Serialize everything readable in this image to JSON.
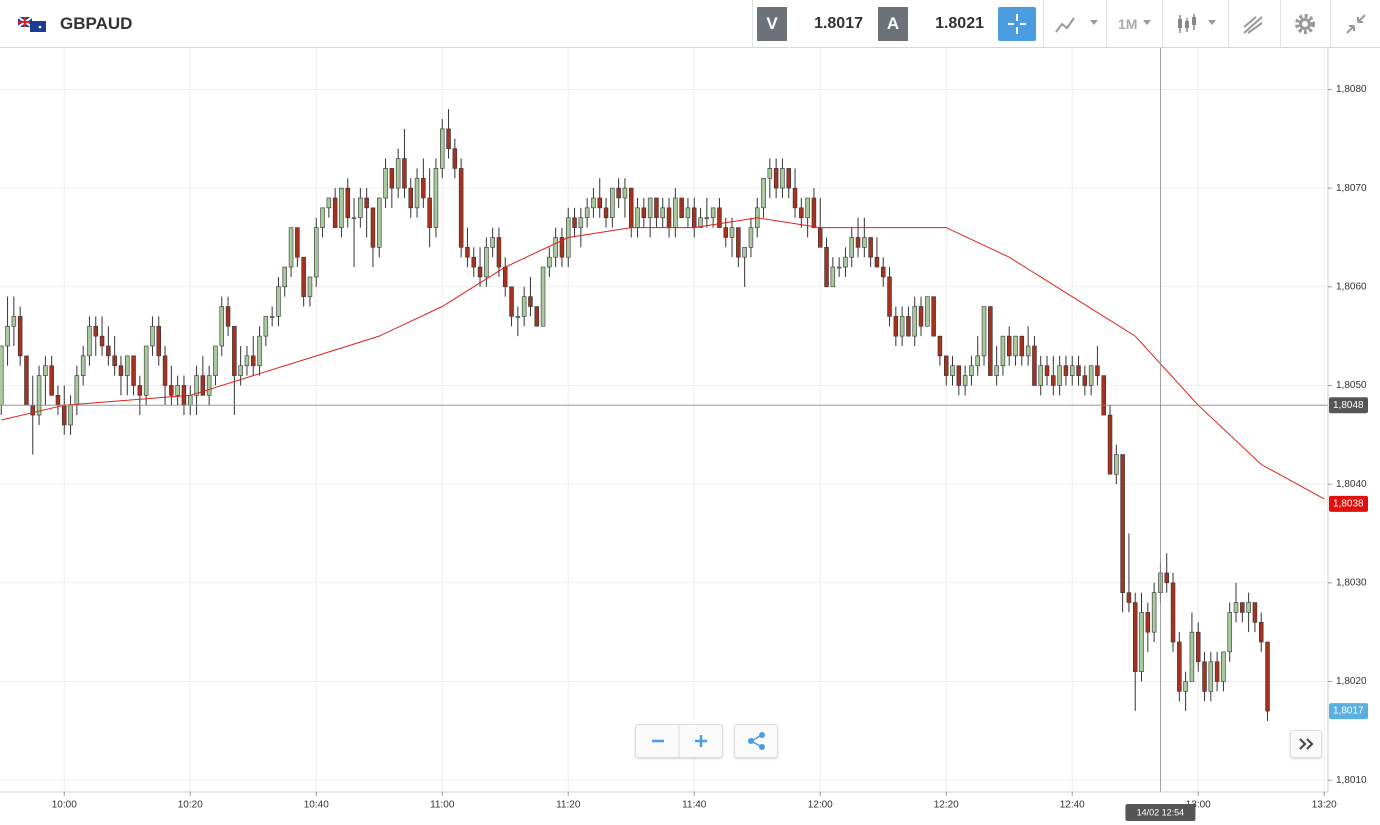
{
  "toolbar": {
    "symbol": "GBPAUD",
    "sell_label": "V",
    "sell_price": "1.8017",
    "buy_label": "A",
    "buy_price": "1.8021",
    "timeframe": "1M"
  },
  "chart_data": {
    "type": "candlestick",
    "up_color": "#a9c99e",
    "down_color": "#a5321f",
    "ma_color": "#e0201b",
    "ylim": [
      1.80088,
      1.80842
    ],
    "yticks": [
      {
        "value": 1.801,
        "label": "1,8010"
      },
      {
        "value": 1.802,
        "label": "1,8020"
      },
      {
        "value": 1.803,
        "label": "1,8030"
      },
      {
        "value": 1.804,
        "label": "1,8040"
      },
      {
        "value": 1.805,
        "label": "1,8050"
      },
      {
        "value": 1.806,
        "label": "1,8060"
      },
      {
        "value": 1.807,
        "label": "1,8070"
      },
      {
        "value": 1.808,
        "label": "1,8080"
      }
    ],
    "xlim": [
      -0.2,
      210.6
    ],
    "xticks": [
      {
        "value": 10,
        "label": "10:00"
      },
      {
        "value": 30,
        "label": "10:20"
      },
      {
        "value": 50,
        "label": "10:40"
      },
      {
        "value": 70,
        "label": "11:00"
      },
      {
        "value": 90,
        "label": "11:20"
      },
      {
        "value": 110,
        "label": "11:40"
      },
      {
        "value": 130,
        "label": "12:00"
      },
      {
        "value": 150,
        "label": "12:20"
      },
      {
        "value": 170,
        "label": "12:40"
      },
      {
        "value": 190,
        "label": "13:00"
      },
      {
        "value": 210,
        "label": "13:20"
      }
    ],
    "grid": true,
    "ohlc": [
      [
        1.8048,
        1.8054,
        1.8047,
        1.8054
      ],
      [
        1.8054,
        1.8059,
        1.8052,
        1.8056
      ],
      [
        1.8056,
        1.8059,
        1.8054,
        1.8057
      ],
      [
        1.8057,
        1.8058,
        1.8052,
        1.8053
      ],
      [
        1.8053,
        1.8053,
        1.8048,
        1.8048
      ],
      [
        1.8048,
        1.8051,
        1.8043,
        1.8047
      ],
      [
        1.8047,
        1.8052,
        1.8046,
        1.8051
      ],
      [
        1.8051,
        1.8053,
        1.8048,
        1.8052
      ],
      [
        1.8052,
        1.8053,
        1.8049,
        1.8049
      ],
      [
        1.8049,
        1.805,
        1.8047,
        1.8048
      ],
      [
        1.8048,
        1.805,
        1.8045,
        1.8046
      ],
      [
        1.8046,
        1.8049,
        1.8045,
        1.8048
      ],
      [
        1.8048,
        1.8052,
        1.8047,
        1.8051
      ],
      [
        1.8051,
        1.8054,
        1.805,
        1.8053
      ],
      [
        1.8053,
        1.8057,
        1.8052,
        1.8056
      ],
      [
        1.8056,
        1.8057,
        1.8053,
        1.8055
      ],
      [
        1.8055,
        1.8057,
        1.8053,
        1.8054
      ],
      [
        1.8054,
        1.8056,
        1.8052,
        1.8053
      ],
      [
        1.8053,
        1.8055,
        1.8051,
        1.8052
      ],
      [
        1.8052,
        1.8053,
        1.8049,
        1.8051
      ],
      [
        1.8051,
        1.8053,
        1.8049,
        1.8053
      ],
      [
        1.8053,
        1.8053,
        1.8049,
        1.805
      ],
      [
        1.805,
        1.8051,
        1.8047,
        1.8049
      ],
      [
        1.8049,
        1.8054,
        1.8048,
        1.8054
      ],
      [
        1.8054,
        1.8057,
        1.8053,
        1.8056
      ],
      [
        1.8056,
        1.8057,
        1.8052,
        1.8053
      ],
      [
        1.8053,
        1.8054,
        1.8048,
        1.805
      ],
      [
        1.805,
        1.8052,
        1.8048,
        1.8049
      ],
      [
        1.8049,
        1.8051,
        1.8048,
        1.805
      ],
      [
        1.805,
        1.8051,
        1.8047,
        1.8048
      ],
      [
        1.8048,
        1.805,
        1.8047,
        1.8049
      ],
      [
        1.8049,
        1.8052,
        1.8047,
        1.8051
      ],
      [
        1.8051,
        1.8053,
        1.8049,
        1.8049
      ],
      [
        1.8049,
        1.8052,
        1.8048,
        1.8051
      ],
      [
        1.8051,
        1.8054,
        1.805,
        1.8054
      ],
      [
        1.8054,
        1.8059,
        1.8053,
        1.8058
      ],
      [
        1.8058,
        1.8059,
        1.8055,
        1.8056
      ],
      [
        1.8056,
        1.8056,
        1.8047,
        1.8051
      ],
      [
        1.8051,
        1.8054,
        1.805,
        1.8052
      ],
      [
        1.8052,
        1.8054,
        1.8051,
        1.8053
      ],
      [
        1.8053,
        1.8055,
        1.8051,
        1.8052
      ],
      [
        1.8052,
        1.8056,
        1.8051,
        1.8055
      ],
      [
        1.8055,
        1.8057,
        1.8054,
        1.8057
      ],
      [
        1.8057,
        1.8058,
        1.8056,
        1.8057
      ],
      [
        1.8057,
        1.8061,
        1.8056,
        1.806
      ],
      [
        1.806,
        1.8062,
        1.8059,
        1.8062
      ],
      [
        1.8062,
        1.8066,
        1.8061,
        1.8066
      ],
      [
        1.8066,
        1.8066,
        1.8062,
        1.8063
      ],
      [
        1.8063,
        1.8063,
        1.8058,
        1.8059
      ],
      [
        1.8059,
        1.8061,
        1.8058,
        1.8061
      ],
      [
        1.8061,
        1.8067,
        1.806,
        1.8066
      ],
      [
        1.8066,
        1.8068,
        1.8065,
        1.8068
      ],
      [
        1.8068,
        1.8069,
        1.8067,
        1.8069
      ],
      [
        1.8069,
        1.807,
        1.8066,
        1.8066
      ],
      [
        1.8066,
        1.807,
        1.8065,
        1.807
      ],
      [
        1.807,
        1.8071,
        1.8066,
        1.8067
      ],
      [
        1.8067,
        1.8069,
        1.8062,
        1.8067
      ],
      [
        1.8067,
        1.807,
        1.8066,
        1.8069
      ],
      [
        1.8069,
        1.807,
        1.8065,
        1.8068
      ],
      [
        1.8068,
        1.8068,
        1.8062,
        1.8064
      ],
      [
        1.8064,
        1.8069,
        1.8063,
        1.8069
      ],
      [
        1.8069,
        1.8073,
        1.8068,
        1.8072
      ],
      [
        1.8072,
        1.8072,
        1.8068,
        1.807
      ],
      [
        1.807,
        1.8074,
        1.8069,
        1.8073
      ],
      [
        1.8073,
        1.8076,
        1.8069,
        1.807
      ],
      [
        1.807,
        1.8071,
        1.8067,
        1.8068
      ],
      [
        1.8068,
        1.8072,
        1.8067,
        1.8071
      ],
      [
        1.8071,
        1.8073,
        1.8068,
        1.8069
      ],
      [
        1.8069,
        1.8072,
        1.8064,
        1.8066
      ],
      [
        1.8066,
        1.8073,
        1.8065,
        1.8072
      ],
      [
        1.8072,
        1.8077,
        1.8071,
        1.8076
      ],
      [
        1.8076,
        1.8078,
        1.8073,
        1.8074
      ],
      [
        1.8074,
        1.8075,
        1.8071,
        1.8072
      ],
      [
        1.8072,
        1.8073,
        1.8063,
        1.8064
      ],
      [
        1.8064,
        1.8066,
        1.8062,
        1.8063
      ],
      [
        1.8063,
        1.8064,
        1.8061,
        1.8062
      ],
      [
        1.8062,
        1.8064,
        1.806,
        1.8061
      ],
      [
        1.8061,
        1.8065,
        1.806,
        1.8064
      ],
      [
        1.8064,
        1.8066,
        1.8063,
        1.8065
      ],
      [
        1.8065,
        1.8066,
        1.8061,
        1.8062
      ],
      [
        1.8062,
        1.8063,
        1.8059,
        1.806
      ],
      [
        1.806,
        1.806,
        1.8056,
        1.8057
      ],
      [
        1.8057,
        1.8058,
        1.8055,
        1.8057
      ],
      [
        1.8057,
        1.806,
        1.8056,
        1.8059
      ],
      [
        1.8059,
        1.8061,
        1.8057,
        1.8058
      ],
      [
        1.8058,
        1.8058,
        1.8056,
        1.8056
      ],
      [
        1.8056,
        1.8062,
        1.8056,
        1.8062
      ],
      [
        1.8062,
        1.8064,
        1.8061,
        1.8063
      ],
      [
        1.8063,
        1.8066,
        1.8062,
        1.8065
      ],
      [
        1.8065,
        1.8066,
        1.8062,
        1.8063
      ],
      [
        1.8063,
        1.8068,
        1.8062,
        1.8067
      ],
      [
        1.8067,
        1.8068,
        1.8065,
        1.8066
      ],
      [
        1.8066,
        1.8068,
        1.8064,
        1.8067
      ],
      [
        1.8067,
        1.8069,
        1.8066,
        1.8068
      ],
      [
        1.8068,
        1.807,
        1.8067,
        1.8069
      ],
      [
        1.8069,
        1.8071,
        1.8067,
        1.8068
      ],
      [
        1.8068,
        1.8069,
        1.8066,
        1.8067
      ],
      [
        1.8067,
        1.807,
        1.8066,
        1.807
      ],
      [
        1.807,
        1.8071,
        1.8068,
        1.8069
      ],
      [
        1.8069,
        1.8071,
        1.8067,
        1.807
      ],
      [
        1.807,
        1.807,
        1.8065,
        1.8066
      ],
      [
        1.8066,
        1.8069,
        1.8065,
        1.8068
      ],
      [
        1.8068,
        1.8069,
        1.8066,
        1.8067
      ],
      [
        1.8067,
        1.8069,
        1.8065,
        1.8069
      ],
      [
        1.8069,
        1.8069,
        1.8066,
        1.8067
      ],
      [
        1.8067,
        1.8069,
        1.8066,
        1.8068
      ],
      [
        1.8068,
        1.8069,
        1.8065,
        1.8066
      ],
      [
        1.8066,
        1.807,
        1.8065,
        1.8069
      ],
      [
        1.8069,
        1.8069,
        1.8067,
        1.8067
      ],
      [
        1.8067,
        1.8069,
        1.8066,
        1.8068
      ],
      [
        1.8068,
        1.8069,
        1.8065,
        1.8066
      ],
      [
        1.8066,
        1.8068,
        1.8066,
        1.8067
      ],
      [
        1.8067,
        1.8069,
        1.8066,
        1.8067
      ],
      [
        1.8067,
        1.8068,
        1.8066,
        1.8068
      ],
      [
        1.8068,
        1.8069,
        1.8066,
        1.8066
      ],
      [
        1.8066,
        1.8067,
        1.8064,
        1.8065
      ],
      [
        1.8065,
        1.8067,
        1.8063,
        1.8066
      ],
      [
        1.8066,
        1.8066,
        1.8062,
        1.8063
      ],
      [
        1.8063,
        1.8064,
        1.806,
        1.8064
      ],
      [
        1.8064,
        1.8067,
        1.8063,
        1.8066
      ],
      [
        1.8066,
        1.8069,
        1.8065,
        1.8068
      ],
      [
        1.8068,
        1.8071,
        1.8067,
        1.8071
      ],
      [
        1.8071,
        1.8073,
        1.8069,
        1.8072
      ],
      [
        1.8072,
        1.8073,
        1.8069,
        1.807
      ],
      [
        1.807,
        1.8073,
        1.8069,
        1.8072
      ],
      [
        1.8072,
        1.8072,
        1.8069,
        1.807
      ],
      [
        1.807,
        1.8072,
        1.8067,
        1.8068
      ],
      [
        1.8068,
        1.8069,
        1.8066,
        1.8067
      ],
      [
        1.8067,
        1.8069,
        1.8065,
        1.8069
      ],
      [
        1.8069,
        1.807,
        1.8066,
        1.8066
      ],
      [
        1.8066,
        1.8069,
        1.8064,
        1.8064
      ],
      [
        1.8064,
        1.8065,
        1.806,
        1.806
      ],
      [
        1.806,
        1.8063,
        1.806,
        1.8062
      ],
      [
        1.8062,
        1.8063,
        1.8061,
        1.8062
      ],
      [
        1.8062,
        1.8064,
        1.8061,
        1.8063
      ],
      [
        1.8063,
        1.8066,
        1.8062,
        1.8065
      ],
      [
        1.8065,
        1.8067,
        1.8063,
        1.8064
      ],
      [
        1.8064,
        1.8067,
        1.8063,
        1.8065
      ],
      [
        1.8065,
        1.8065,
        1.8062,
        1.8063
      ],
      [
        1.8063,
        1.8065,
        1.8062,
        1.8062
      ],
      [
        1.8062,
        1.8063,
        1.806,
        1.8061
      ],
      [
        1.8061,
        1.8062,
        1.8056,
        1.8057
      ],
      [
        1.8057,
        1.8058,
        1.8054,
        1.8055
      ],
      [
        1.8055,
        1.8058,
        1.8054,
        1.8057
      ],
      [
        1.8057,
        1.8058,
        1.8055,
        1.8055
      ],
      [
        1.8055,
        1.8059,
        1.8054,
        1.8058
      ],
      [
        1.8058,
        1.8059,
        1.8055,
        1.8056
      ],
      [
        1.8056,
        1.8059,
        1.8056,
        1.8059
      ],
      [
        1.8059,
        1.8059,
        1.8055,
        1.8055
      ],
      [
        1.8055,
        1.8055,
        1.8052,
        1.8053
      ],
      [
        1.8053,
        1.8053,
        1.805,
        1.8051
      ],
      [
        1.8051,
        1.8053,
        1.805,
        1.8052
      ],
      [
        1.8052,
        1.8052,
        1.8049,
        1.805
      ],
      [
        1.805,
        1.8052,
        1.8049,
        1.8051
      ],
      [
        1.8051,
        1.8053,
        1.805,
        1.8052
      ],
      [
        1.8052,
        1.8055,
        1.8051,
        1.8053
      ],
      [
        1.8053,
        1.8058,
        1.8052,
        1.8058
      ],
      [
        1.8058,
        1.8058,
        1.8051,
        1.8051
      ],
      [
        1.8051,
        1.8054,
        1.805,
        1.8052
      ],
      [
        1.8052,
        1.8055,
        1.8051,
        1.8055
      ],
      [
        1.8055,
        1.8056,
        1.8052,
        1.8053
      ],
      [
        1.8053,
        1.8055,
        1.8052,
        1.8055
      ],
      [
        1.8055,
        1.8055,
        1.8052,
        1.8053
      ],
      [
        1.8053,
        1.8056,
        1.8052,
        1.8054
      ],
      [
        1.8054,
        1.8055,
        1.805,
        1.805
      ],
      [
        1.805,
        1.8053,
        1.8049,
        1.8052
      ],
      [
        1.8052,
        1.8053,
        1.805,
        1.8051
      ],
      [
        1.8051,
        1.8053,
        1.8049,
        1.805
      ],
      [
        1.805,
        1.8053,
        1.8049,
        1.8052
      ],
      [
        1.8052,
        1.8053,
        1.805,
        1.8051
      ],
      [
        1.8051,
        1.8053,
        1.805,
        1.8052
      ],
      [
        1.8052,
        1.8053,
        1.805,
        1.8051
      ],
      [
        1.8051,
        1.8052,
        1.8049,
        1.805
      ],
      [
        1.805,
        1.8052,
        1.8049,
        1.8052
      ],
      [
        1.8052,
        1.8054,
        1.805,
        1.8051
      ],
      [
        1.8051,
        1.8051,
        1.8047,
        1.8047
      ],
      [
        1.8047,
        1.8048,
        1.8041,
        1.8041
      ],
      [
        1.8041,
        1.8044,
        1.804,
        1.8043
      ],
      [
        1.8043,
        1.8043,
        1.8027,
        1.8029
      ],
      [
        1.8029,
        1.8035,
        1.8027,
        1.8028
      ],
      [
        1.8028,
        1.8029,
        1.8017,
        1.8021
      ],
      [
        1.8021,
        1.8029,
        1.802,
        1.8027
      ],
      [
        1.8027,
        1.8028,
        1.8023,
        1.8025
      ],
      [
        1.8025,
        1.803,
        1.8024,
        1.8029
      ],
      [
        1.8029,
        1.8032,
        1.8028,
        1.8031
      ],
      [
        1.8031,
        1.8033,
        1.8029,
        1.803
      ],
      [
        1.803,
        1.8031,
        1.8023,
        1.8024
      ],
      [
        1.8024,
        1.8025,
        1.8018,
        1.8019
      ],
      [
        1.8019,
        1.8021,
        1.8017,
        1.802
      ],
      [
        1.802,
        1.8027,
        1.802,
        1.8025
      ],
      [
        1.8025,
        1.8026,
        1.8021,
        1.8022
      ],
      [
        1.8022,
        1.8023,
        1.8018,
        1.8019
      ],
      [
        1.8019,
        1.8023,
        1.8018,
        1.8022
      ],
      [
        1.8022,
        1.8023,
        1.8019,
        1.802
      ],
      [
        1.802,
        1.8023,
        1.8019,
        1.8023
      ],
      [
        1.8023,
        1.8028,
        1.8022,
        1.8027
      ],
      [
        1.8027,
        1.803,
        1.8026,
        1.8028
      ],
      [
        1.8028,
        1.8028,
        1.8026,
        1.8027
      ],
      [
        1.8027,
        1.8029,
        1.8025,
        1.8028
      ],
      [
        1.8028,
        1.8028,
        1.8025,
        1.8026
      ],
      [
        1.8026,
        1.8027,
        1.8023,
        1.8024
      ],
      [
        1.8024,
        1.8024,
        1.8016,
        1.8017
      ]
    ],
    "ma": {
      "x": [
        0,
        10,
        20,
        30,
        40,
        50,
        60,
        70,
        80,
        90,
        100,
        110,
        120,
        130,
        140,
        150,
        160,
        170,
        180,
        190,
        200,
        210
      ],
      "values": [
        1.80465,
        1.8048,
        1.80485,
        1.8049,
        1.8051,
        1.8053,
        1.8055,
        1.8058,
        1.8062,
        1.8065,
        1.8066,
        1.8066,
        1.8067,
        1.8066,
        1.8066,
        1.8066,
        1.8063,
        1.8059,
        1.8055,
        1.8048,
        1.8042,
        1.80385
      ]
    },
    "price_tags": [
      {
        "value": 1.8048,
        "label": "1,8048",
        "color": "#555555"
      },
      {
        "value": 1.8038,
        "label": "1,8038",
        "color": "#e0100c"
      },
      {
        "value": 1.8017,
        "label": "1,8017",
        "color": "#5aaee0"
      }
    ],
    "crosshair": {
      "x": 184,
      "label": "14/02 12:54"
    }
  }
}
